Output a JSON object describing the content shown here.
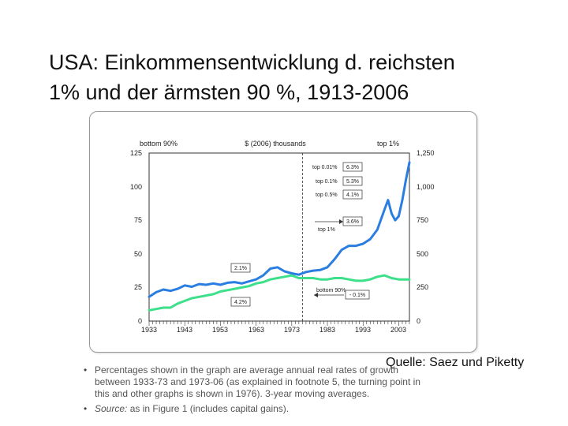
{
  "slide": {
    "title_line1": "USA: Einkommensentwicklung d. reichsten",
    "title_line2": "1% und der ärmsten 90 %, 1913-2006",
    "source_caption": "Quelle: Saez und Piketty"
  },
  "notes": {
    "line1": "Percentages shown in the graph are average annual real rates of growth",
    "line2": "between 1933-73 and 1973-06 (as explained in footnote 5, the turning point in",
    "line3": "this and other graphs is shown in 1976). 3-year moving averages.",
    "source_label": "Source:",
    "source_text": " as in Figure 1 (includes capital gains)."
  },
  "chart_data": {
    "type": "line",
    "title": "$ (2006) thousands",
    "left_axis_label": "bottom 90%",
    "right_axis_label": "top 1%",
    "x_ticks": [
      "1933",
      "1943",
      "1953",
      "1963",
      "1973",
      "1983",
      "1993",
      "2003"
    ],
    "xlim": [
      1933,
      2006
    ],
    "left_ylim": [
      0,
      125
    ],
    "left_ticks": [
      "0",
      "25",
      "50",
      "75",
      "100",
      "125"
    ],
    "right_ylim": [
      0,
      1250
    ],
    "right_ticks": [
      "0",
      "250",
      "500",
      "750",
      "1,000",
      "1,250"
    ],
    "turning_point_year": 1976,
    "series": [
      {
        "name": "top 1%",
        "axis": "right",
        "color": "#2a7de1",
        "x": [
          1933,
          1935,
          1937,
          1939,
          1941,
          1943,
          1945,
          1947,
          1949,
          1951,
          1953,
          1955,
          1957,
          1959,
          1961,
          1963,
          1965,
          1967,
          1969,
          1971,
          1973,
          1975,
          1977,
          1979,
          1981,
          1983,
          1985,
          1987,
          1989,
          1991,
          1993,
          1995,
          1997,
          1999,
          2000,
          2001,
          2002,
          2003,
          2004,
          2005,
          2006
        ],
        "values": [
          180,
          215,
          235,
          225,
          240,
          265,
          255,
          275,
          270,
          280,
          270,
          285,
          290,
          280,
          295,
          310,
          340,
          390,
          400,
          370,
          355,
          345,
          365,
          375,
          380,
          400,
          460,
          530,
          560,
          560,
          575,
          610,
          680,
          830,
          900,
          800,
          750,
          780,
          900,
          1050,
          1180
        ]
      },
      {
        "name": "bottom 90%",
        "axis": "left",
        "color": "#3de08a",
        "x": [
          1933,
          1935,
          1937,
          1939,
          1941,
          1943,
          1945,
          1947,
          1949,
          1951,
          1953,
          1955,
          1957,
          1959,
          1961,
          1963,
          1965,
          1967,
          1969,
          1971,
          1973,
          1975,
          1977,
          1979,
          1981,
          1983,
          1985,
          1987,
          1989,
          1991,
          1993,
          1995,
          1997,
          1999,
          2001,
          2003,
          2005,
          2006
        ],
        "values": [
          8,
          9,
          10,
          10,
          13,
          15,
          17,
          18,
          19,
          20,
          22,
          23,
          24,
          25,
          26,
          28,
          29,
          31,
          32,
          33,
          34,
          32,
          32,
          32,
          31,
          31,
          32,
          32,
          31,
          30,
          30,
          31,
          33,
          34,
          32,
          31,
          31,
          31
        ]
      }
    ],
    "annotations": [
      {
        "label": "top 0.01%",
        "value": "6.3%"
      },
      {
        "label": "top 0.1%",
        "value": "5.3%"
      },
      {
        "label": "top 0.5%",
        "value": "4.1%"
      },
      {
        "label": "top 1%",
        "value": "3.6%"
      },
      {
        "label": "top 1%, 1933-73",
        "value": "2.1%"
      },
      {
        "label": "bottom 90%, 1933-73",
        "value": "4.2%"
      },
      {
        "label": "bottom 90%",
        "value": "- 0.1%"
      }
    ]
  }
}
